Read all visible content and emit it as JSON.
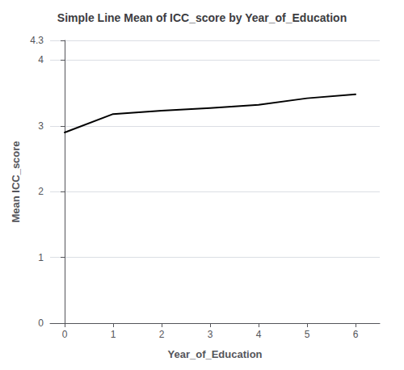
{
  "chart_data": {
    "type": "line",
    "title": "Simple Line Mean of ICC_score by Year_of_Education",
    "xlabel": "Year_of_Education",
    "ylabel": "Mean ICC_score",
    "x": [
      0,
      1,
      2,
      3,
      4,
      5,
      6
    ],
    "values": [
      2.9,
      3.18,
      3.23,
      3.27,
      3.32,
      3.42,
      3.48
    ],
    "color": "#000000",
    "xlim": [
      -0.3,
      6.5
    ],
    "ylim": [
      0,
      4.3
    ],
    "xticks": [
      0,
      1,
      2,
      3,
      4,
      5,
      6
    ],
    "yticks": [
      0,
      1,
      2,
      3,
      4
    ],
    "grid": true
  }
}
